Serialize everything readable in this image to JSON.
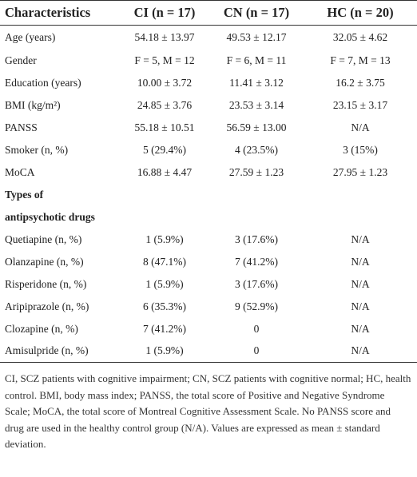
{
  "table": {
    "header": [
      "Characteristics",
      "CI (n = 17)",
      "CN (n = 17)",
      "HC (n = 20)"
    ],
    "rows": [
      [
        "Age (years)",
        "54.18 ± 13.97",
        "49.53 ± 12.17",
        "32.05 ± 4.62"
      ],
      [
        "Gender",
        "F = 5, M = 12",
        "F = 6, M = 11",
        "F = 7, M = 13"
      ],
      [
        "Education (years)",
        "10.00 ± 3.72",
        "11.41 ± 3.12",
        "16.2 ± 3.75"
      ],
      [
        "BMI (kg/m²)",
        "24.85 ± 3.76",
        "23.53 ± 3.14",
        "23.15 ± 3.17"
      ],
      [
        "PANSS",
        "55.18 ± 10.51",
        "56.59 ± 13.00",
        "N/A"
      ],
      [
        "Smoker (n, %)",
        "5 (29.4%)",
        "4 (23.5%)",
        "3 (15%)"
      ],
      [
        "MoCA",
        "16.88 ± 4.47",
        "27.59 ± 1.23",
        "27.95 ± 1.23"
      ]
    ],
    "section": [
      "Types of",
      "antipsychotic drugs"
    ],
    "drug_rows": [
      [
        "Quetiapine (n, %)",
        "1 (5.9%)",
        "3 (17.6%)",
        "N/A"
      ],
      [
        "Olanzapine (n, %)",
        "8 (47.1%)",
        "7 (41.2%)",
        "N/A"
      ],
      [
        "Risperidone (n, %)",
        "1 (5.9%)",
        "3 (17.6%)",
        "N/A"
      ],
      [
        "Aripiprazole (n, %)",
        "6 (35.3%)",
        "9 (52.9%)",
        "N/A"
      ],
      [
        "Clozapine (n, %)",
        "7 (41.2%)",
        "0",
        "N/A"
      ],
      [
        "Amisulpride (n, %)",
        "1 (5.9%)",
        "0",
        "N/A"
      ]
    ]
  },
  "footnote": "CI, SCZ patients with cognitive impairment; CN, SCZ patients with cognitive normal; HC, health control. BMI, body mass index; PANSS, the total score of Positive and Negative Syndrome Scale; MoCA, the total score of Montreal Cognitive Assessment Scale. No PANSS score and drug are used in the healthy control group (N/A). Values are expressed as mean ± standard deviation."
}
